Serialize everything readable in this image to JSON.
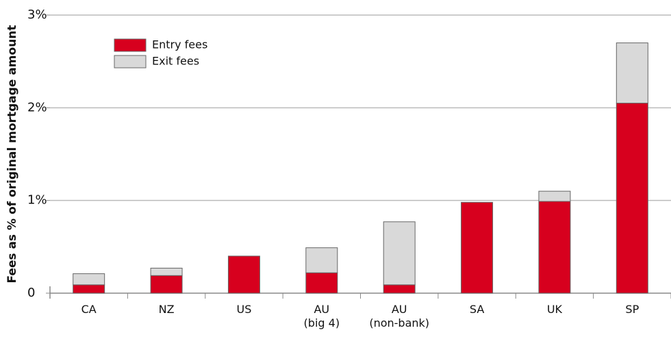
{
  "chart_data": {
    "type": "stacked_bar",
    "y_label": "Fees as % of original  mortgage amount",
    "categories": [
      "CA",
      "NZ",
      "US",
      "AU\n(big 4)",
      "AU\n(non-bank)",
      "SA",
      "UK",
      "SP"
    ],
    "series": [
      {
        "name": "Entry fees",
        "color": "#d7001e",
        "values": [
          0.09,
          0.19,
          0.4,
          0.22,
          0.09,
          0.98,
          0.99,
          2.05
        ]
      },
      {
        "name": "Exit fees",
        "color": "#d9d9d9",
        "values": [
          0.12,
          0.08,
          0,
          0.27,
          0.68,
          0,
          0.11,
          0.65
        ]
      }
    ],
    "ylim": [
      0,
      3
    ],
    "yticks": [
      0,
      {
        "value": 1,
        "label": "1%"
      },
      {
        "value": 2,
        "label": "2%"
      },
      {
        "value": 3,
        "label": "3%"
      }
    ],
    "grid": true,
    "legend": "top-left"
  }
}
